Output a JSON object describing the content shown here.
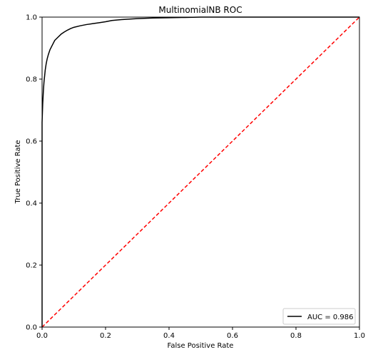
{
  "chart_data": {
    "type": "line",
    "title": "MultinomialNB ROC",
    "xlabel": "False Positive Rate",
    "ylabel": "True Positive Rate",
    "xlim": [
      0,
      1
    ],
    "ylim": [
      0,
      1
    ],
    "grid": false,
    "legend_position": "lower-right",
    "x_ticks": [
      "0.0",
      "0.2",
      "0.4",
      "0.6",
      "0.8",
      "1.0"
    ],
    "y_ticks": [
      "0.0",
      "0.2",
      "0.4",
      "0.6",
      "0.8",
      "1.0"
    ],
    "series": [
      {
        "name": "AUC = 0.986",
        "color": "#000000",
        "style": "solid",
        "x": [
          0.0,
          0.0,
          0.002,
          0.004,
          0.006,
          0.008,
          0.01,
          0.013,
          0.016,
          0.02,
          0.025,
          0.03,
          0.035,
          0.04,
          0.05,
          0.06,
          0.07,
          0.08,
          0.09,
          0.1,
          0.12,
          0.14,
          0.16,
          0.18,
          0.2,
          0.22,
          0.25,
          0.3,
          0.35,
          0.4,
          0.45,
          0.5,
          0.6,
          0.7,
          0.8,
          0.9,
          1.0
        ],
        "y": [
          0.0,
          0.66,
          0.72,
          0.76,
          0.79,
          0.81,
          0.83,
          0.85,
          0.865,
          0.88,
          0.895,
          0.905,
          0.915,
          0.925,
          0.935,
          0.945,
          0.952,
          0.958,
          0.963,
          0.967,
          0.972,
          0.976,
          0.979,
          0.982,
          0.985,
          0.989,
          0.992,
          0.995,
          0.997,
          0.998,
          0.999,
          1.0,
          1.0,
          1.0,
          1.0,
          1.0,
          1.0
        ]
      },
      {
        "name": "",
        "color": "#ff0000",
        "style": "dashed",
        "x": [
          0,
          1
        ],
        "y": [
          0,
          1
        ]
      }
    ]
  }
}
